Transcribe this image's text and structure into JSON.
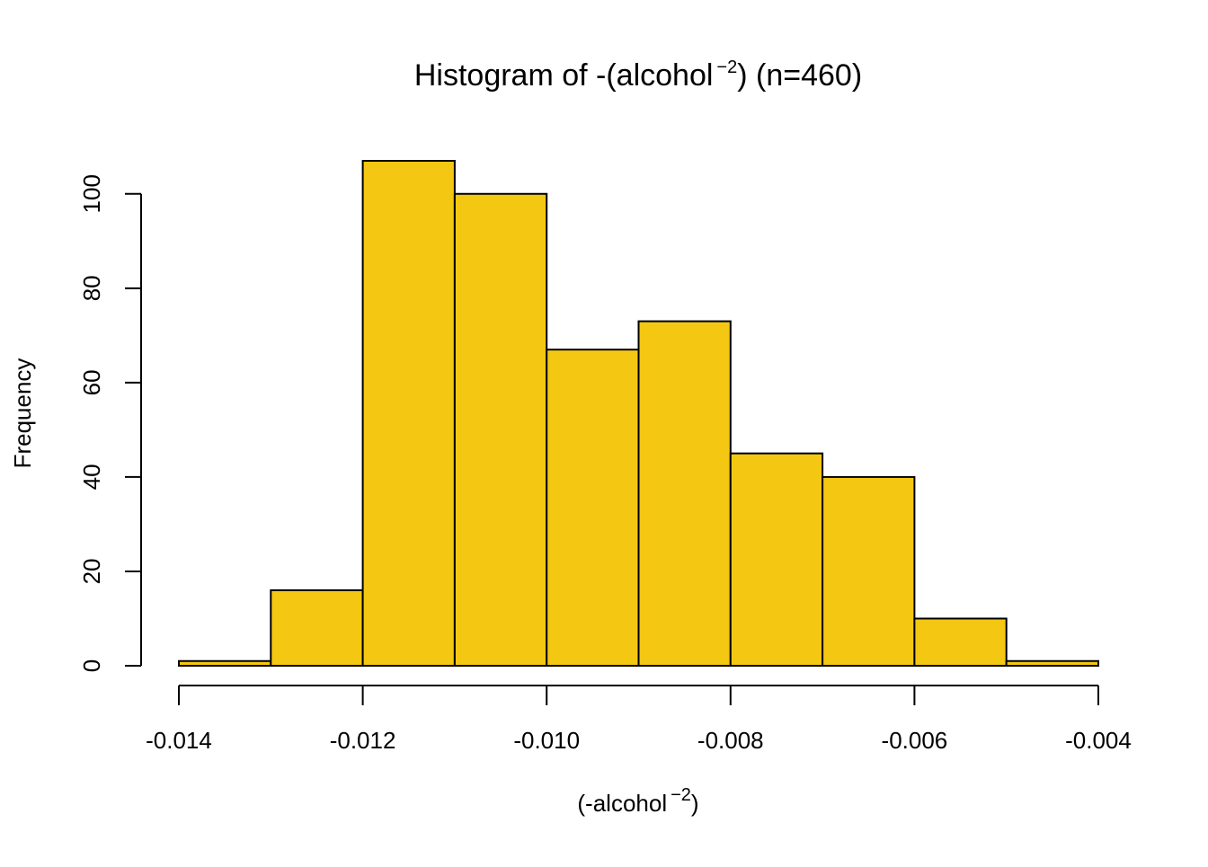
{
  "chart_data": {
    "type": "bar",
    "title": {
      "main": "Histogram of -(alcohol",
      "superscript": "−2",
      "tail": ") (n=460)"
    },
    "xlabel": {
      "main": "(-alcohol",
      "superscript": "−2",
      "tail": ")"
    },
    "ylabel": "Frequency",
    "bins": [
      {
        "start": -0.014,
        "end": -0.013,
        "value": 1
      },
      {
        "start": -0.013,
        "end": -0.012,
        "value": 16
      },
      {
        "start": -0.012,
        "end": -0.011,
        "value": 107
      },
      {
        "start": -0.011,
        "end": -0.01,
        "value": 100
      },
      {
        "start": -0.01,
        "end": -0.009,
        "value": 67
      },
      {
        "start": -0.009,
        "end": -0.008,
        "value": 73
      },
      {
        "start": -0.008,
        "end": -0.007,
        "value": 45
      },
      {
        "start": -0.007,
        "end": -0.006,
        "value": 40
      },
      {
        "start": -0.006,
        "end": -0.005,
        "value": 10
      },
      {
        "start": -0.005,
        "end": -0.004,
        "value": 1
      }
    ],
    "x_ticks": [
      -0.014,
      -0.012,
      -0.01,
      -0.008,
      -0.006,
      -0.004
    ],
    "x_tick_labels": [
      "-0.014",
      "-0.012",
      "-0.010",
      "-0.008",
      "-0.006",
      "-0.004"
    ],
    "y_ticks": [
      0,
      20,
      40,
      60,
      80,
      100
    ],
    "y_tick_labels": [
      "0",
      "20",
      "40",
      "60",
      "80",
      "100"
    ],
    "xlim": [
      -0.014,
      -0.004
    ],
    "ylim": [
      0,
      107
    ],
    "grid": false,
    "bar_color": "#F4C712",
    "edge_color": "#000000"
  }
}
